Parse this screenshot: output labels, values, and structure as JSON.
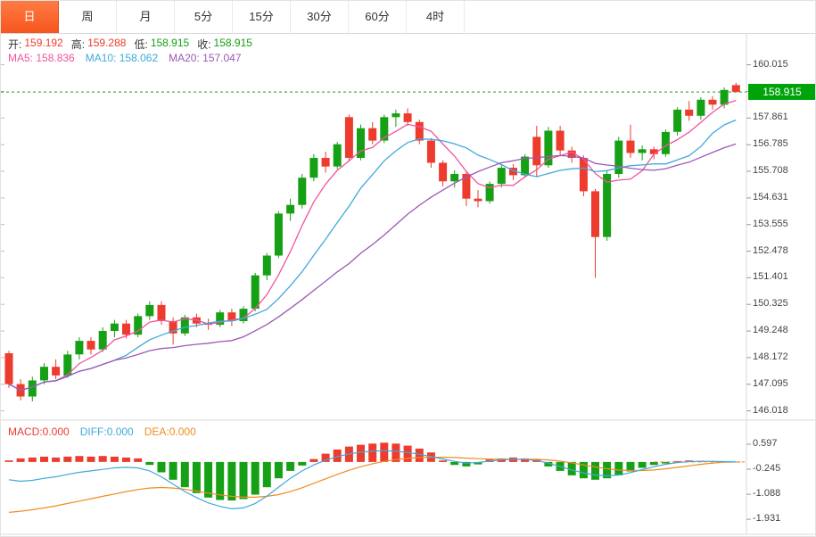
{
  "tabs": [
    {
      "label": "日",
      "active": true
    },
    {
      "label": "周",
      "active": false
    },
    {
      "label": "月",
      "active": false
    },
    {
      "label": "5分",
      "active": false
    },
    {
      "label": "15分",
      "active": false
    },
    {
      "label": "30分",
      "active": false
    },
    {
      "label": "60分",
      "active": false
    },
    {
      "label": "4时",
      "active": false
    }
  ],
  "ohlc": {
    "open_label": "开:",
    "open": "159.192",
    "high_label": "高:",
    "high": "159.288",
    "low_label": "低:",
    "low": "158.915",
    "close_label": "收:",
    "close": "158.915"
  },
  "ma": {
    "ma5_text": "MA5: 158.836",
    "ma10_text": "MA10: 158.062",
    "ma20_text": "MA20: 157.047"
  },
  "macd_header": {
    "macd_text": "MACD:0.000",
    "diff_text": "DIFF:0.000",
    "dea_text": "DEA:0.000"
  },
  "price_badge": {
    "text": "158.915",
    "bg": "#00a40a"
  },
  "colors": {
    "up_candle": "#16a016",
    "down_candle": "#ed3b2e",
    "macd_pos": "#ed3b2e",
    "macd_neg": "#16a016",
    "ma5": "#f0549e",
    "ma10": "#3fa9dc",
    "ma20": "#9b59b6",
    "diff_line": "#3fa9dc",
    "dea_line": "#f08c1e",
    "macd_text": "#ed3b2e",
    "price_line": "#0ba50b",
    "active_tab_bg": "#f6551e",
    "axis_line": "#dadada"
  },
  "chart_data": {
    "type": "candlestick",
    "title": "",
    "main": {
      "current_price": 158.915,
      "axis_labels": [
        160.015,
        158.938,
        157.861,
        156.785,
        155.708,
        154.631,
        153.555,
        152.478,
        151.401,
        150.325,
        149.248,
        148.172,
        147.095,
        146.018
      ],
      "ylim": [
        145.68,
        161.3
      ],
      "grid": false,
      "ma_periods": [
        5,
        10,
        20
      ],
      "candles": [
        [
          148.35,
          148.45,
          146.95,
          147.1
        ],
        [
          147.1,
          147.3,
          146.45,
          146.6
        ],
        [
          146.6,
          147.4,
          146.4,
          147.25
        ],
        [
          147.25,
          147.95,
          147.1,
          147.8
        ],
        [
          147.8,
          148.1,
          147.3,
          147.45
        ],
        [
          147.45,
          148.45,
          147.35,
          148.3
        ],
        [
          148.3,
          149.0,
          148.1,
          148.85
        ],
        [
          148.85,
          149.0,
          148.3,
          148.5
        ],
        [
          148.5,
          149.4,
          148.4,
          149.25
        ],
        [
          149.25,
          149.7,
          149.0,
          149.55
        ],
        [
          149.55,
          149.7,
          148.95,
          149.1
        ],
        [
          149.1,
          149.95,
          149.0,
          149.85
        ],
        [
          149.85,
          150.45,
          149.7,
          150.3
        ],
        [
          150.3,
          150.45,
          149.5,
          149.65
        ],
        [
          149.65,
          149.8,
          148.7,
          149.15
        ],
        [
          149.15,
          149.9,
          149.05,
          149.8
        ],
        [
          149.8,
          149.95,
          149.4,
          149.55
        ],
        [
          149.55,
          149.75,
          149.3,
          149.5
        ],
        [
          149.5,
          150.1,
          149.4,
          150.0
        ],
        [
          150.0,
          150.15,
          149.45,
          149.65
        ],
        [
          149.65,
          150.25,
          149.55,
          150.15
        ],
        [
          150.15,
          151.6,
          150.05,
          151.5
        ],
        [
          151.5,
          152.4,
          151.3,
          152.3
        ],
        [
          152.3,
          154.1,
          152.2,
          154.0
        ],
        [
          154.0,
          154.6,
          153.7,
          154.35
        ],
        [
          154.35,
          155.6,
          154.2,
          155.45
        ],
        [
          155.45,
          156.4,
          155.3,
          156.25
        ],
        [
          156.25,
          156.5,
          155.65,
          155.9
        ],
        [
          155.9,
          156.9,
          155.8,
          156.8
        ],
        [
          157.9,
          158.0,
          156.1,
          156.25
        ],
        [
          156.25,
          157.6,
          156.15,
          157.45
        ],
        [
          157.45,
          157.7,
          156.8,
          156.95
        ],
        [
          156.95,
          158.0,
          156.85,
          157.9
        ],
        [
          157.9,
          158.2,
          157.5,
          158.05
        ],
        [
          158.05,
          158.25,
          157.55,
          157.7
        ],
        [
          157.7,
          157.8,
          156.8,
          156.95
        ],
        [
          156.95,
          157.05,
          155.85,
          156.05
        ],
        [
          156.05,
          156.15,
          155.1,
          155.3
        ],
        [
          155.3,
          155.75,
          155.05,
          155.6
        ],
        [
          155.6,
          155.7,
          154.3,
          154.6
        ],
        [
          154.6,
          154.95,
          154.25,
          154.5
        ],
        [
          154.5,
          155.3,
          154.4,
          155.2
        ],
        [
          155.2,
          155.95,
          155.05,
          155.85
        ],
        [
          155.85,
          156.0,
          155.35,
          155.55
        ],
        [
          155.55,
          156.4,
          155.45,
          156.3
        ],
        [
          157.1,
          157.55,
          155.5,
          155.95
        ],
        [
          155.95,
          157.5,
          155.85,
          157.35
        ],
        [
          157.35,
          157.55,
          156.35,
          156.55
        ],
        [
          156.55,
          156.7,
          156.05,
          156.25
        ],
        [
          156.25,
          156.35,
          154.7,
          154.9
        ],
        [
          154.9,
          155.0,
          151.4,
          153.05
        ],
        [
          153.05,
          155.75,
          152.9,
          155.6
        ],
        [
          155.6,
          157.1,
          155.45,
          156.95
        ],
        [
          156.95,
          157.6,
          156.25,
          156.45
        ],
        [
          156.45,
          156.75,
          156.15,
          156.6
        ],
        [
          156.6,
          156.7,
          156.2,
          156.4
        ],
        [
          156.4,
          157.4,
          156.3,
          157.3
        ],
        [
          157.3,
          158.3,
          157.15,
          158.2
        ],
        [
          158.2,
          158.55,
          157.75,
          157.95
        ],
        [
          157.95,
          158.7,
          157.8,
          158.6
        ],
        [
          158.6,
          158.75,
          158.2,
          158.4
        ],
        [
          158.4,
          159.1,
          158.25,
          159.0
        ],
        [
          159.192,
          159.288,
          158.915,
          158.915
        ]
      ]
    },
    "macd": {
      "axis_labels": [
        0.597,
        -0.245,
        -1.088,
        -1.931
      ],
      "ylim": [
        -2.44,
        1.35
      ],
      "grid": false,
      "histogram": [
        0.05,
        0.12,
        0.15,
        0.18,
        0.15,
        0.18,
        0.2,
        0.18,
        0.2,
        0.18,
        0.15,
        0.12,
        -0.1,
        -0.35,
        -0.6,
        -0.85,
        -1.05,
        -1.2,
        -1.28,
        -1.3,
        -1.25,
        -1.1,
        -0.85,
        -0.55,
        -0.3,
        -0.12,
        0.1,
        0.28,
        0.42,
        0.52,
        0.58,
        0.62,
        0.65,
        0.62,
        0.55,
        0.45,
        0.32,
        0.05,
        -0.1,
        -0.15,
        -0.08,
        0.08,
        0.12,
        0.15,
        0.12,
        0.08,
        -0.15,
        -0.3,
        -0.45,
        -0.55,
        -0.6,
        -0.55,
        -0.45,
        -0.32,
        -0.2,
        -0.1,
        -0.05,
        0.03,
        0.05,
        0.04,
        0.03,
        0.02,
        0.01
      ],
      "diff": [
        -0.6,
        -0.65,
        -0.62,
        -0.55,
        -0.5,
        -0.42,
        -0.35,
        -0.3,
        -0.25,
        -0.2,
        -0.18,
        -0.2,
        -0.3,
        -0.5,
        -0.75,
        -1.0,
        -1.2,
        -1.38,
        -1.5,
        -1.58,
        -1.55,
        -1.4,
        -1.15,
        -0.85,
        -0.55,
        -0.3,
        -0.1,
        0.06,
        0.18,
        0.27,
        0.33,
        0.36,
        0.38,
        0.36,
        0.32,
        0.26,
        0.18,
        0.1,
        0.02,
        -0.04,
        -0.02,
        0.03,
        0.07,
        0.09,
        0.08,
        0.05,
        -0.04,
        -0.15,
        -0.27,
        -0.37,
        -0.44,
        -0.47,
        -0.44,
        -0.36,
        -0.26,
        -0.16,
        -0.08,
        -0.02,
        0.01,
        0.02,
        0.02,
        0.01,
        0.0
      ],
      "dea": [
        -1.7,
        -1.66,
        -1.61,
        -1.55,
        -1.48,
        -1.4,
        -1.32,
        -1.24,
        -1.16,
        -1.08,
        -1.0,
        -0.93,
        -0.88,
        -0.86,
        -0.88,
        -0.92,
        -0.98,
        -1.05,
        -1.11,
        -1.16,
        -1.19,
        -1.19,
        -1.16,
        -1.1,
        -1.0,
        -0.87,
        -0.72,
        -0.57,
        -0.42,
        -0.28,
        -0.16,
        -0.06,
        0.02,
        0.08,
        0.12,
        0.15,
        0.16,
        0.16,
        0.15,
        0.13,
        0.11,
        0.1,
        0.09,
        0.09,
        0.09,
        0.09,
        0.07,
        0.03,
        -0.03,
        -0.1,
        -0.17,
        -0.23,
        -0.27,
        -0.29,
        -0.29,
        -0.27,
        -0.23,
        -0.18,
        -0.13,
        -0.08,
        -0.04,
        -0.01,
        0.0
      ]
    }
  }
}
